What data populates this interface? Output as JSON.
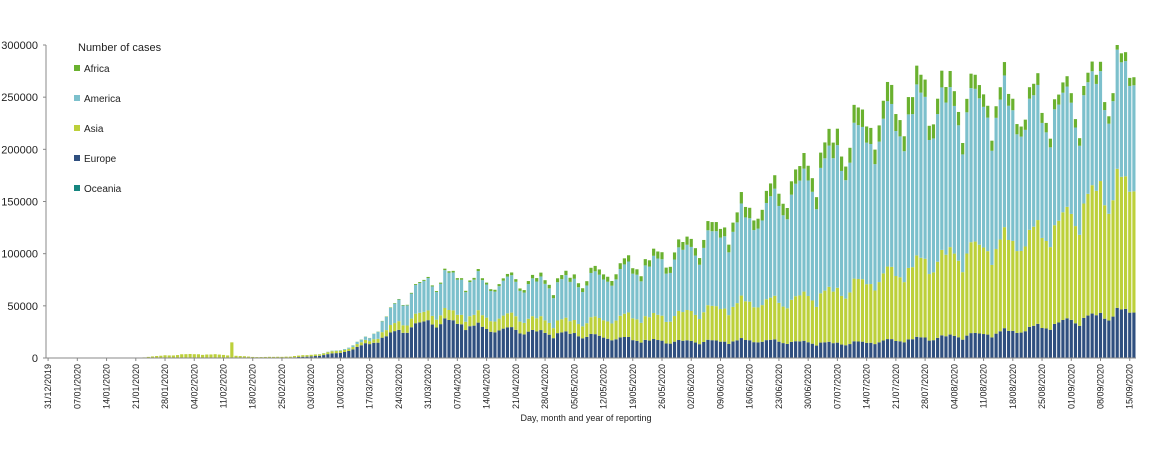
{
  "chart_data": {
    "type": "bar",
    "stacked": true,
    "title": "",
    "xlabel": "Day, month and year of reporting",
    "ylabel": "",
    "ylim": [
      0,
      300000
    ],
    "yticks": [
      "0",
      "50000",
      "100000",
      "150000",
      "200000",
      "250000",
      "300000"
    ],
    "grid": false,
    "legend_title": "Number of cases",
    "legend_position": "top-left",
    "x_tick_labels": [
      "31/12/2019",
      "07/01/2020",
      "14/01/2020",
      "21/01/2020",
      "28/01/2020",
      "04/02/2020",
      "11/02/2020",
      "18/02/2020",
      "25/02/2020",
      "03/03/2020",
      "10/03/2020",
      "17/03/2020",
      "24/03/2020",
      "31/03/2020",
      "07/04/2020",
      "14/04/2020",
      "21/04/2020",
      "28/04/2020",
      "05/05/2020",
      "12/05/2020",
      "19/05/2020",
      "26/05/2020",
      "02/06/2020",
      "09/06/2020",
      "16/06/2020",
      "23/06/2020",
      "30/06/2020",
      "07/07/2020",
      "14/07/2020",
      "21/07/2020",
      "28/07/2020",
      "04/08/2020",
      "11/08/2020",
      "18/08/2020",
      "25/08/2020",
      "01/09/2020",
      "08/09/2020",
      "15/09/2020"
    ],
    "series": [
      {
        "name": "Europe",
        "color": "#2f4f7f"
      },
      {
        "name": "Asia",
        "color": "#bcd03a"
      },
      {
        "name": "America",
        "color": "#7cc0cc"
      },
      {
        "name": "Africa",
        "color": "#6ab12f"
      },
      {
        "name": "Oceania",
        "color": "#16857f"
      }
    ],
    "legend_order": [
      "Africa",
      "America",
      "Asia",
      "Europe",
      "Oceania"
    ],
    "weekly_totals": {
      "note_units": "approximate daily totals at each weekly tick",
      "dates": [
        "31/12/2019",
        "07/01/2020",
        "14/01/2020",
        "21/01/2020",
        "28/01/2020",
        "04/02/2020",
        "11/02/2020",
        "18/02/2020",
        "25/02/2020",
        "03/03/2020",
        "10/03/2020",
        "17/03/2020",
        "24/03/2020",
        "31/03/2020",
        "07/04/2020",
        "14/04/2020",
        "21/04/2020",
        "28/04/2020",
        "05/05/2020",
        "12/05/2020",
        "19/05/2020",
        "26/05/2020",
        "02/06/2020",
        "09/06/2020",
        "16/06/2020",
        "23/06/2020",
        "30/06/2020",
        "07/07/2020",
        "14/07/2020",
        "21/07/2020",
        "28/07/2020",
        "04/08/2020",
        "11/08/2020",
        "18/08/2020",
        "25/08/2020",
        "01/09/2020",
        "08/09/2020",
        "15/09/2020"
      ],
      "europe": [
        0,
        0,
        0,
        0,
        0,
        0,
        0,
        0,
        100,
        1500,
        5000,
        14000,
        26000,
        35000,
        34000,
        28000,
        27000,
        24000,
        23000,
        20000,
        18000,
        16000,
        16000,
        16000,
        17000,
        16000,
        15000,
        14000,
        15000,
        17000,
        19000,
        21000,
        23000,
        26000,
        30000,
        36000,
        41000,
        45000
      ],
      "asia": [
        0,
        0,
        0,
        0,
        2500,
        3800,
        3000,
        1000,
        1000,
        1500,
        2000,
        3000,
        8000,
        9000,
        9000,
        11000,
        13000,
        12000,
        12000,
        17000,
        22000,
        23000,
        28000,
        32000,
        37000,
        38000,
        44000,
        50000,
        58000,
        65000,
        73000,
        78000,
        83000,
        86000,
        90000,
        100000,
        120000,
        120000
      ],
      "america": [
        0,
        0,
        0,
        0,
        0,
        0,
        0,
        0,
        0,
        0,
        500,
        3000,
        20000,
        30000,
        35000,
        32000,
        33000,
        35000,
        38000,
        40000,
        45000,
        52000,
        60000,
        70000,
        80000,
        95000,
        110000,
        130000,
        140000,
        145000,
        150000,
        140000,
        135000,
        125000,
        115000,
        105000,
        100000,
        105000
      ],
      "africa": [
        0,
        0,
        0,
        0,
        0,
        0,
        0,
        0,
        0,
        0,
        100,
        200,
        500,
        1000,
        1500,
        1800,
        2500,
        3500,
        4000,
        5000,
        5500,
        6500,
        7500,
        8500,
        10000,
        12000,
        14000,
        15000,
        16000,
        17000,
        16000,
        14000,
        12000,
        11000,
        10000,
        9000,
        8500,
        8000
      ]
    }
  }
}
